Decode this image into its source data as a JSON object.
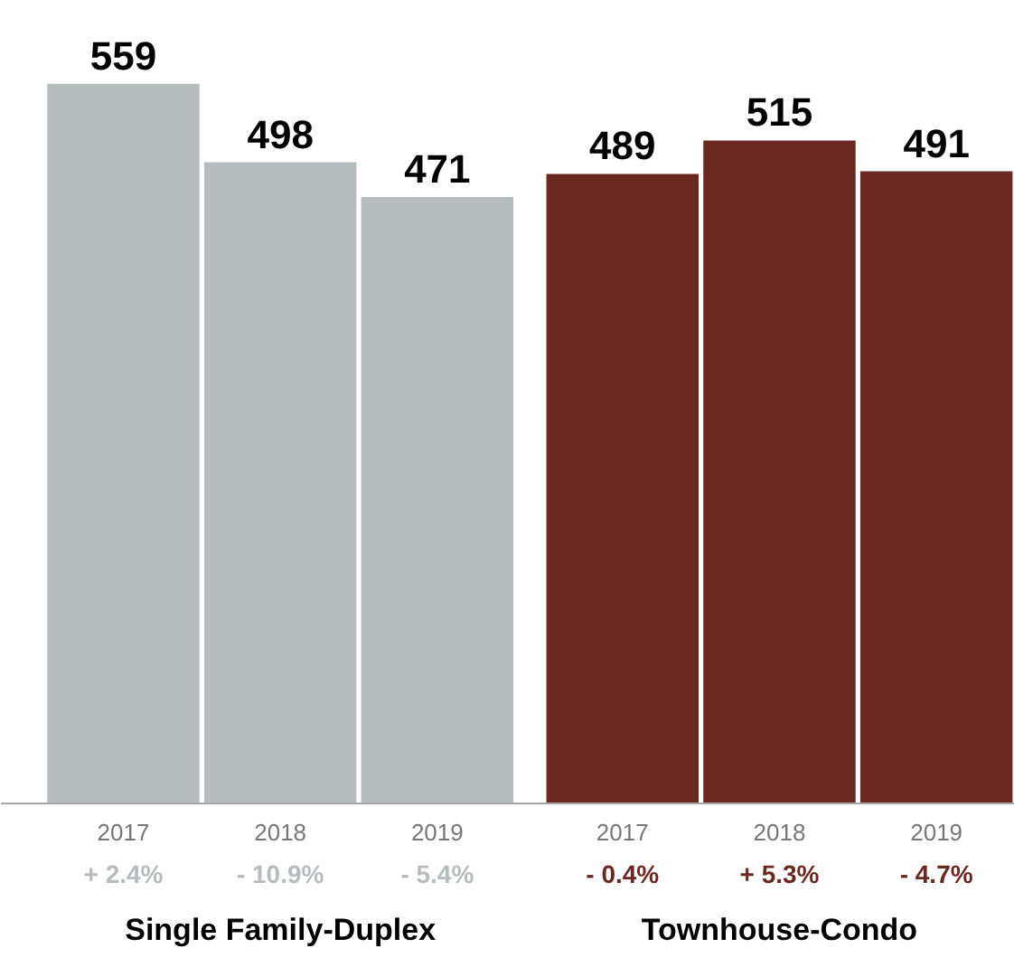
{
  "chart_data": {
    "type": "bar",
    "categories": [
      "2017",
      "2018",
      "2019",
      "2017",
      "2018",
      "2019"
    ],
    "values": [
      559,
      498,
      471,
      489,
      515,
      491
    ],
    "colors": [
      "#b6bcbe",
      "#b6bcbe",
      "#b6bcbe",
      "#6b2820",
      "#6b2820",
      "#6b2820"
    ],
    "data_labels": true,
    "annotations": [
      "+ 2.4%",
      "- 10.9%",
      "- 5.4%",
      "- 0.4%",
      "+ 5.3%",
      "- 4.7%",
      "Single Family-Duplex",
      "Townhouse-Condo"
    ],
    "grid": false
  }
}
